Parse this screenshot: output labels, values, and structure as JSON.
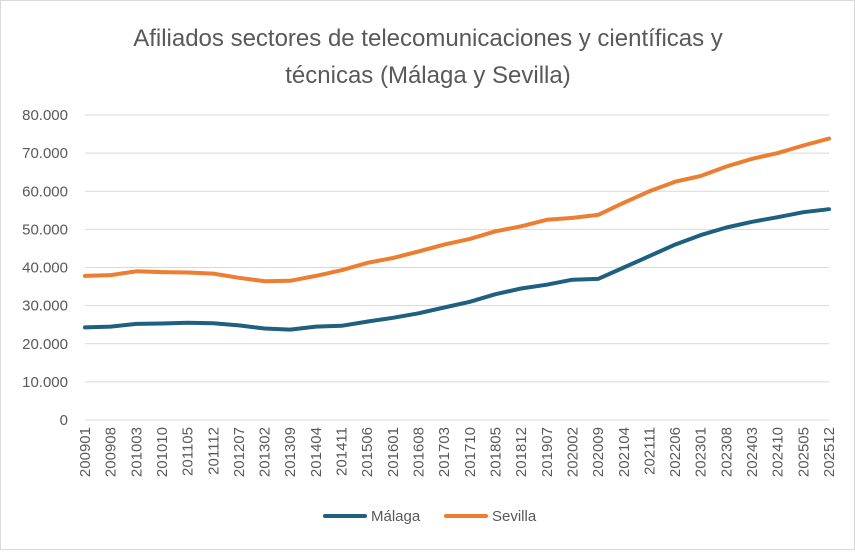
{
  "chart_data": {
    "type": "line",
    "title_lines": [
      "Afiliados sectores de telecomunicaciones y científicas y",
      "técnicas (Málaga y Sevilla)"
    ],
    "xlabel": "",
    "ylabel": "",
    "ylim": [
      0,
      80000
    ],
    "yticks": [
      0,
      10000,
      20000,
      30000,
      40000,
      50000,
      60000,
      70000,
      80000
    ],
    "ytick_labels": [
      "0",
      "10.000",
      "20.000",
      "30.000",
      "40.000",
      "50.000",
      "60.000",
      "70.000",
      "80.000"
    ],
    "xtick_labels": [
      "200901",
      "200908",
      "201003",
      "201010",
      "201105",
      "201112",
      "201207",
      "201302",
      "201309",
      "201404",
      "201411",
      "201506",
      "201601",
      "201608",
      "201703",
      "201710",
      "201805",
      "201812",
      "201907",
      "202002",
      "202009",
      "202104",
      "202111",
      "202206",
      "202301",
      "202308",
      "202403",
      "202410",
      "202505",
      "202512"
    ],
    "x": [
      "200901",
      "200908",
      "201003",
      "201010",
      "201105",
      "201112",
      "201207",
      "201302",
      "201309",
      "201404",
      "201411",
      "201506",
      "201601",
      "201608",
      "201703",
      "201710",
      "201805",
      "201812",
      "201907",
      "202002",
      "202009",
      "202104",
      "202111",
      "202206",
      "202301",
      "202308",
      "202403",
      "202410",
      "202505",
      "202512"
    ],
    "grid": true,
    "legend_position": "bottom",
    "series": [
      {
        "name": "Málaga",
        "color": "#1f5f7f",
        "values": [
          24300,
          24500,
          25200,
          25300,
          25500,
          25400,
          24800,
          24000,
          23700,
          24500,
          24700,
          25800,
          26800,
          28000,
          29500,
          31000,
          33000,
          34500,
          35500,
          36800,
          37000,
          40000,
          43000,
          46000,
          48500,
          50500,
          52000,
          53200,
          54500,
          55300
        ]
      },
      {
        "name": "Sevilla",
        "color": "#ed7d31",
        "values": [
          37800,
          38000,
          39000,
          38800,
          38700,
          38400,
          37300,
          36400,
          36500,
          37800,
          39300,
          41200,
          42500,
          44200,
          46000,
          47500,
          49500,
          50800,
          52500,
          53000,
          53800,
          57000,
          60000,
          62500,
          64000,
          66500,
          68500,
          70000,
          72000,
          73800
        ]
      }
    ]
  }
}
